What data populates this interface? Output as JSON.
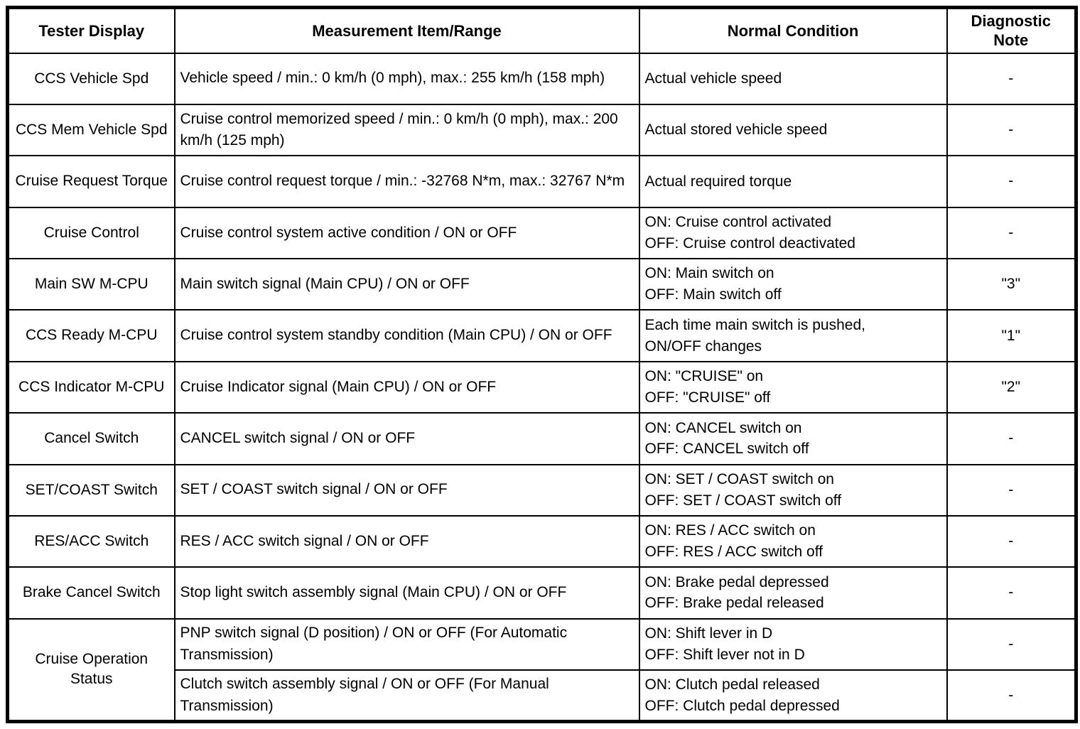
{
  "colors": {
    "border": "#000000",
    "background": "#ffffff",
    "text": "#000000"
  },
  "table": {
    "headers": [
      "Tester Display",
      "Measurement Item/Range",
      "Normal Condition",
      "Diagnostic Note"
    ],
    "rows": [
      {
        "tester": "CCS Vehicle Spd",
        "item": "Vehicle speed / min.: 0 km/h (0 mph), max.: 255 km/h (158 mph)",
        "condition": [
          "Actual vehicle speed"
        ],
        "note": "-"
      },
      {
        "tester": "CCS Mem Vehicle Spd",
        "item": "Cruise control memorized speed / min.: 0 km/h (0 mph), max.: 200 km/h (125 mph)",
        "condition": [
          "Actual stored vehicle speed"
        ],
        "note": "-"
      },
      {
        "tester": "Cruise Request Torque",
        "item": "Cruise control request torque / min.: -32768 N*m, max.: 32767 N*m",
        "condition": [
          "Actual required torque"
        ],
        "note": "-"
      },
      {
        "tester": "Cruise Control",
        "item": "Cruise control system active condition / ON or OFF",
        "condition": [
          "ON: Cruise control activated",
          "OFF: Cruise control deactivated"
        ],
        "note": "-"
      },
      {
        "tester": "Main SW M-CPU",
        "item": "Main switch signal (Main CPU) / ON or OFF",
        "condition": [
          "ON: Main switch on",
          "OFF: Main switch off"
        ],
        "note": "\"3\""
      },
      {
        "tester": "CCS Ready M-CPU",
        "item": "Cruise control system standby condition (Main CPU) / ON or OFF",
        "condition": [
          "Each time main switch is pushed,",
          "ON/OFF changes"
        ],
        "note": "\"1\""
      },
      {
        "tester": "CCS Indicator M-CPU",
        "item": "Cruise Indicator signal (Main CPU) / ON or OFF",
        "condition": [
          "ON: \"CRUISE\" on",
          "OFF: \"CRUISE\" off"
        ],
        "note": "\"2\""
      },
      {
        "tester": "Cancel Switch",
        "item": "CANCEL switch signal / ON or OFF",
        "condition": [
          "ON: CANCEL switch on",
          "OFF: CANCEL switch off"
        ],
        "note": "-"
      },
      {
        "tester": "SET/COAST Switch",
        "item": "SET / COAST switch signal / ON or OFF",
        "condition": [
          "ON: SET / COAST switch on",
          "OFF: SET / COAST switch off"
        ],
        "note": "-"
      },
      {
        "tester": "RES/ACC Switch",
        "item": "RES / ACC switch signal / ON or OFF",
        "condition": [
          "ON: RES / ACC switch on",
          "OFF: RES / ACC switch off"
        ],
        "note": "-"
      },
      {
        "tester": "Brake Cancel Switch",
        "item": "Stop light switch assembly signal (Main CPU) / ON or OFF",
        "condition": [
          "ON: Brake pedal depressed",
          "OFF: Brake pedal released"
        ],
        "note": "-"
      },
      {
        "tester": "Cruise Operation Status",
        "tester_rowspan": 2,
        "item": "PNP switch signal (D position) / ON or OFF (For Automatic Transmission)",
        "condition": [
          "ON: Shift lever in D",
          "OFF: Shift lever not in D"
        ],
        "note": "-"
      },
      {
        "item": "Clutch switch assembly signal / ON or OFF (For Manual Transmission)",
        "condition": [
          "ON: Clutch pedal released",
          "OFF: Clutch pedal depressed"
        ],
        "note": "-"
      }
    ]
  }
}
